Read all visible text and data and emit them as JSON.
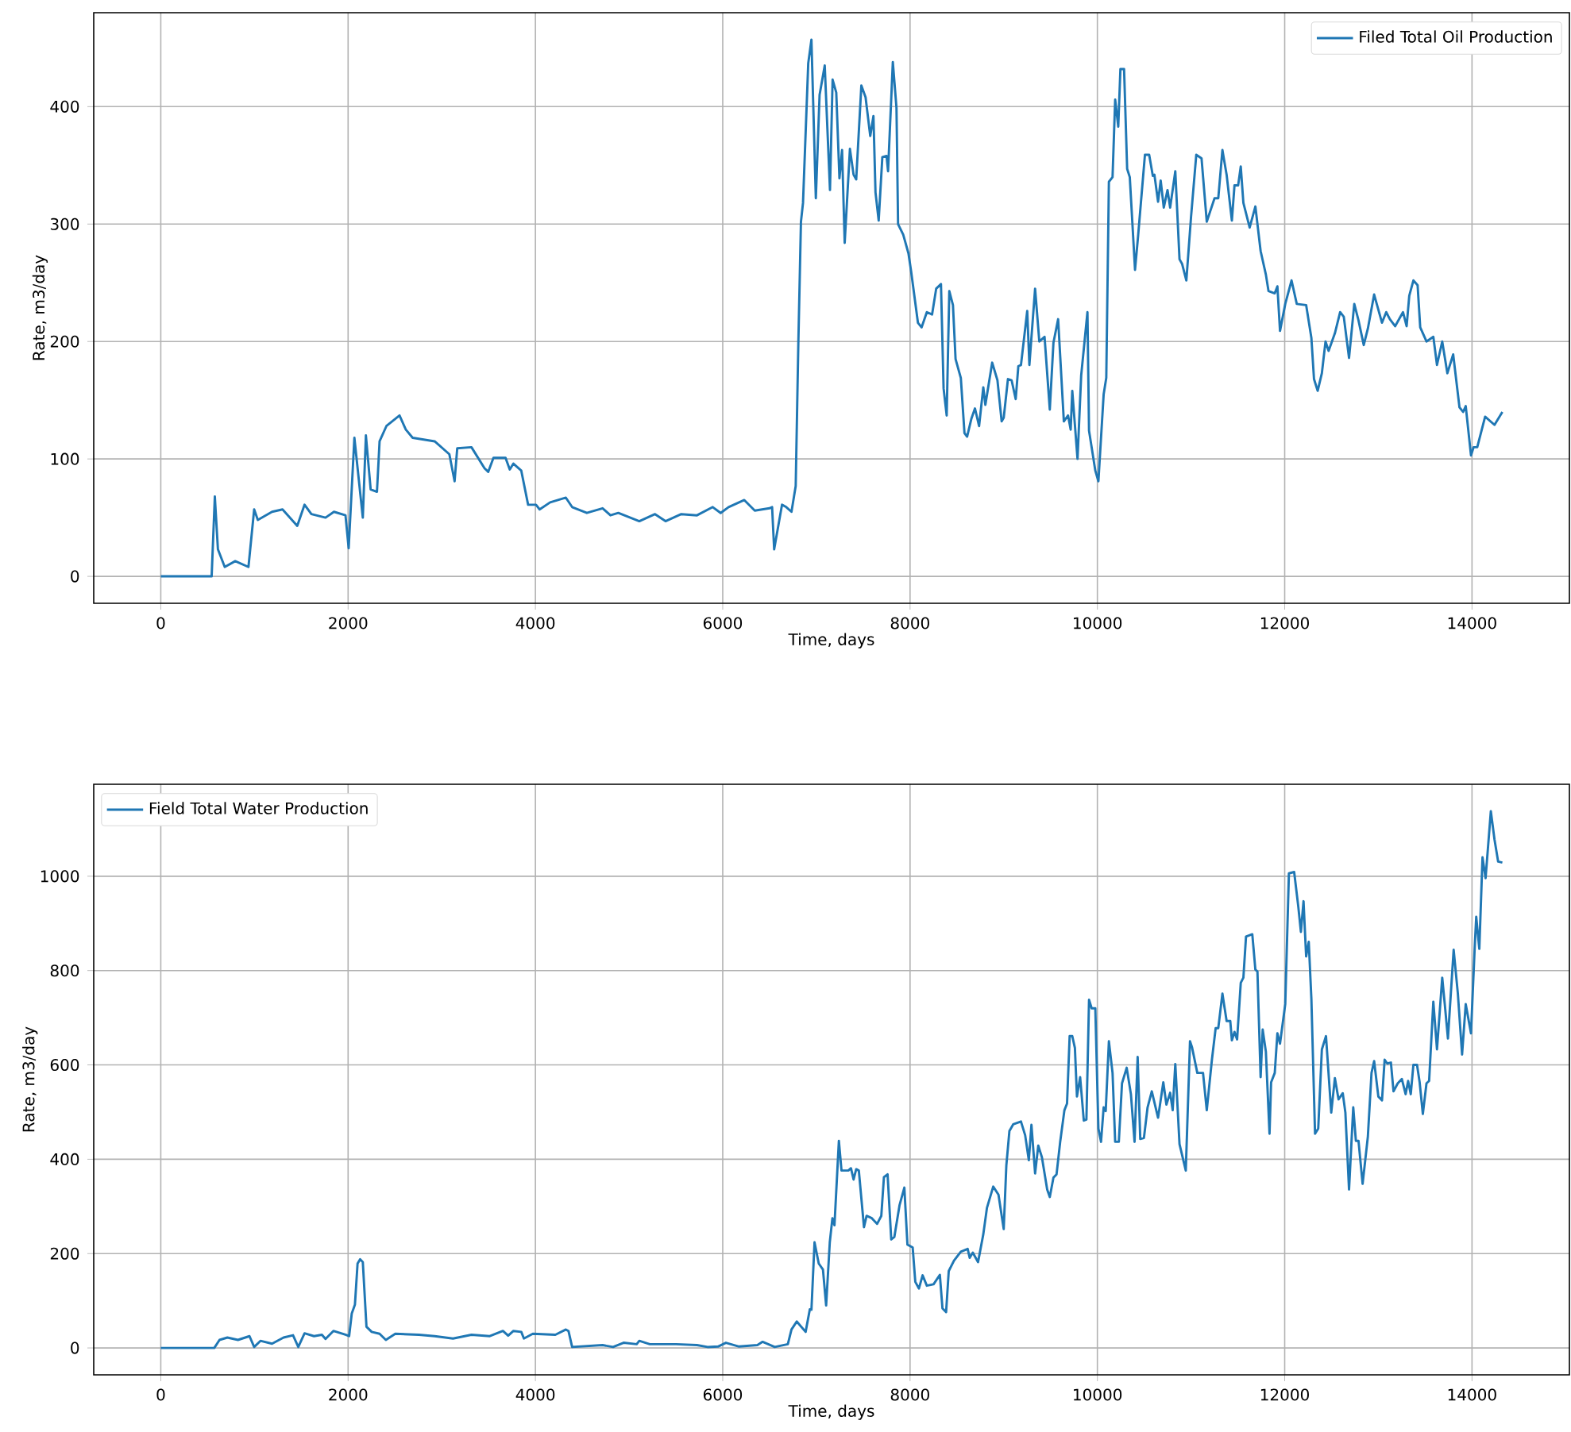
{
  "chart_data": [
    {
      "type": "line",
      "xlabel": "Time, days",
      "ylabel": "Rate, m3/day",
      "xlim": [
        -716,
        15040
      ],
      "ylim": [
        -22.9,
        480
      ],
      "xticks": [
        0,
        2000,
        4000,
        6000,
        8000,
        10000,
        12000,
        14000
      ],
      "yticks": [
        0,
        100,
        200,
        300,
        400
      ],
      "grid": true,
      "legend": "top right",
      "series": [
        {
          "name": "Filed Total Oil Production",
          "color": "#1f77b4",
          "x": [
            0,
            543,
            577,
            610,
            683,
            795,
            936,
            997,
            1036,
            1188,
            1300,
            1457,
            1535,
            1608,
            1759,
            1849,
            1972,
            2006,
            2067,
            2157,
            2190,
            2241,
            2308,
            2336,
            2409,
            2549,
            2616,
            2689,
            2924,
            3081,
            3137,
            3165,
            3317,
            3457,
            3496,
            3552,
            3681,
            3726,
            3765,
            3849,
            3922,
            4006,
            4045,
            4157,
            4325,
            4392,
            4549,
            4717,
            4801,
            4885,
            5109,
            5277,
            5389,
            5557,
            5725,
            5893,
            5978,
            6062,
            6230,
            6342,
            6499,
            6527,
            6549,
            6633,
            6678,
            6734,
            6779,
            6807,
            6835,
            6857,
            6913,
            6947,
            6994,
            7034,
            7089,
            7145,
            7173,
            7212,
            7246,
            7274,
            7302,
            7358,
            7397,
            7425,
            7480,
            7525,
            7575,
            7609,
            7631,
            7665,
            7704,
            7749,
            7765,
            7816,
            7855,
            7872,
            7927,
            7983,
            8011,
            8084,
            8123,
            8179,
            8235,
            8279,
            8330,
            8358,
            8391,
            8419,
            8458,
            8486,
            8542,
            8581,
            8609,
            8654,
            8693,
            8737,
            8782,
            8804,
            8877,
            8933,
            8978,
            9000,
            9045,
            9084,
            9128,
            9156,
            9184,
            9251,
            9274,
            9335,
            9380,
            9436,
            9492,
            9531,
            9581,
            9642,
            9687,
            9715,
            9732,
            9788,
            9827,
            9894,
            9911,
            9978,
            10011,
            10067,
            10095,
            10123,
            10162,
            10190,
            10223,
            10246,
            10285,
            10318,
            10346,
            10402,
            10436,
            10508,
            10553,
            10592,
            10609,
            10648,
            10676,
            10709,
            10749,
            10777,
            10832,
            10877,
            10905,
            10950,
            11000,
            11056,
            11112,
            11168,
            11251,
            11291,
            11335,
            11380,
            11436,
            11464,
            11503,
            11531,
            11559,
            11626,
            11687,
            11743,
            11799,
            11827,
            11894,
            11922,
            11950,
            12006,
            12073,
            12129,
            12229,
            12285,
            12313,
            12352,
            12397,
            12436,
            12469,
            12536,
            12592,
            12631,
            12687,
            12743,
            12788,
            12844,
            12888,
            12955,
            13039,
            13084,
            13123,
            13179,
            13263,
            13302,
            13330,
            13374,
            13419,
            13447,
            13514,
            13587,
            13626,
            13682,
            13737,
            13799,
            13866,
            13905,
            13933,
            13989,
            14017,
            14056,
            14140,
            14240,
            14324
          ],
          "values": [
            0,
            0,
            68,
            23,
            8,
            13,
            8,
            57,
            48,
            55,
            57,
            43,
            61,
            53,
            50,
            55,
            52,
            24,
            118,
            50,
            120,
            74,
            72,
            115,
            128,
            137,
            125,
            118,
            115,
            104,
            81,
            109,
            110,
            92,
            89,
            101,
            101,
            91,
            96,
            90,
            61,
            61,
            57,
            63,
            67,
            59,
            54,
            58,
            52,
            54,
            47,
            53,
            47,
            53,
            52,
            59,
            54,
            59,
            65,
            56,
            58,
            59,
            23,
            61,
            59,
            55,
            77,
            198,
            302,
            318,
            437,
            457,
            322,
            410,
            435,
            329,
            423,
            412,
            339,
            363,
            284,
            364,
            342,
            338,
            418,
            408,
            375,
            392,
            327,
            303,
            357,
            358,
            345,
            438,
            399,
            300,
            291,
            275,
            260,
            216,
            212,
            225,
            223,
            245,
            249,
            160,
            137,
            243,
            231,
            185,
            169,
            122,
            119,
            134,
            143,
            128,
            161,
            146,
            182,
            167,
            132,
            135,
            168,
            167,
            151,
            179,
            180,
            226,
            180,
            245,
            200,
            204,
            142,
            199,
            219,
            132,
            137,
            125,
            158,
            100,
            171,
            225,
            124,
            90,
            81,
            155,
            169,
            336,
            340,
            406,
            383,
            432,
            432,
            347,
            340,
            261,
            291,
            359,
            359,
            341,
            342,
            319,
            337,
            314,
            329,
            314,
            345,
            270,
            266,
            252,
            306,
            359,
            356,
            302,
            322,
            322,
            363,
            342,
            303,
            333,
            333,
            349,
            318,
            297,
            315,
            277,
            257,
            243,
            241,
            247,
            209,
            232,
            252,
            232,
            231,
            203,
            168,
            158,
            173,
            200,
            192,
            207,
            225,
            221,
            186,
            232,
            218,
            197,
            211,
            240,
            216,
            225,
            219,
            213,
            225,
            213,
            239,
            252,
            248,
            212,
            200,
            204,
            180,
            200,
            173,
            189,
            144,
            140,
            145,
            103,
            110,
            110,
            136,
            129,
            140
          ]
        }
      ]
    },
    {
      "type": "line",
      "xlabel": "Time, days",
      "ylabel": "Rate, m3/day",
      "xlim": [
        -716,
        15040
      ],
      "ylim": [
        -57,
        1195
      ],
      "xticks": [
        0,
        2000,
        4000,
        6000,
        8000,
        10000,
        12000,
        14000
      ],
      "yticks": [
        0,
        200,
        400,
        600,
        800,
        1000
      ],
      "grid": true,
      "legend": "top left",
      "series": [
        {
          "name": "Field Total Water Production",
          "color": "#1f77b4",
          "x": [
            0,
            571,
            627,
            711,
            824,
            947,
            997,
            1064,
            1188,
            1311,
            1412,
            1468,
            1535,
            1636,
            1720,
            1759,
            1843,
            1972,
            2011,
            2039,
            2073,
            2101,
            2129,
            2157,
            2196,
            2252,
            2336,
            2403,
            2504,
            2756,
            2924,
            3120,
            3317,
            3513,
            3653,
            3709,
            3765,
            3849,
            3877,
            3972,
            4213,
            4325,
            4353,
            4392,
            4717,
            4829,
            4941,
            5081,
            5109,
            5221,
            5501,
            5725,
            5838,
            5950,
            6034,
            6174,
            6370,
            6426,
            6555,
            6695,
            6734,
            6790,
            6885,
            6930,
            6947,
            6980,
            7025,
            7070,
            7104,
            7143,
            7171,
            7193,
            7240,
            7268,
            7341,
            7369,
            7397,
            7425,
            7453,
            7508,
            7536,
            7592,
            7648,
            7693,
            7721,
            7760,
            7799,
            7832,
            7888,
            7939,
            7972,
            8028,
            8056,
            8095,
            8134,
            8179,
            8251,
            8318,
            8346,
            8385,
            8413,
            8469,
            8542,
            8615,
            8637,
            8670,
            8726,
            8782,
            8821,
            8888,
            8944,
            9000,
            9028,
            9061,
            9101,
            9184,
            9229,
            9268,
            9296,
            9335,
            9369,
            9408,
            9464,
            9492,
            9531,
            9564,
            9603,
            9648,
            9676,
            9704,
            9732,
            9760,
            9782,
            9816,
            9855,
            9883,
            9911,
            9939,
            9978,
            10011,
            10039,
            10067,
            10089,
            10123,
            10162,
            10190,
            10229,
            10263,
            10313,
            10358,
            10397,
            10430,
            10458,
            10497,
            10536,
            10581,
            10648,
            10704,
            10737,
            10777,
            10804,
            10832,
            10877,
            10944,
            10989,
            11011,
            11067,
            11128,
            11168,
            11223,
            11263,
            11291,
            11335,
            11380,
            11419,
            11436,
            11464,
            11492,
            11531,
            11559,
            11587,
            11654,
            11687,
            11709,
            11743,
            11765,
            11799,
            11838,
            11855,
            11894,
            11922,
            11950,
            12006,
            12045,
            12101,
            12145,
            12173,
            12201,
            12229,
            12257,
            12285,
            12324,
            12358,
            12397,
            12441,
            12497,
            12536,
            12575,
            12620,
            12648,
            12687,
            12732,
            12760,
            12788,
            12832,
            12888,
            12927,
            12955,
            13000,
            13039,
            13067,
            13095,
            13134,
            13162,
            13207,
            13251,
            13291,
            13318,
            13346,
            13374,
            13413,
            13441,
            13475,
            13514,
            13542,
            13587,
            13626,
            13682,
            13709,
            13743,
            13804,
            13849,
            13894,
            13933,
            13989,
            14028,
            14045,
            14078,
            14112,
            14145,
            14201,
            14240,
            14279,
            14324
          ],
          "values": [
            0,
            0,
            17,
            22,
            17,
            25,
            2,
            15,
            9,
            22,
            27,
            2,
            31,
            25,
            28,
            19,
            36,
            28,
            25,
            73,
            92,
            179,
            188,
            182,
            45,
            34,
            30,
            17,
            30,
            28,
            25,
            20,
            28,
            25,
            36,
            26,
            36,
            34,
            20,
            30,
            28,
            39,
            36,
            2,
            6,
            2,
            11,
            8,
            15,
            8,
            8,
            6,
            2,
            3,
            11,
            3,
            6,
            13,
            2,
            8,
            39,
            56,
            34,
            82,
            81,
            224,
            179,
            166,
            90,
            224,
            275,
            260,
            439,
            376,
            376,
            381,
            357,
            379,
            376,
            256,
            280,
            275,
            263,
            280,
            362,
            368,
            230,
            235,
            303,
            340,
            219,
            213,
            140,
            126,
            154,
            132,
            135,
            155,
            84,
            76,
            163,
            185,
            204,
            210,
            191,
            202,
            182,
            241,
            297,
            342,
            325,
            252,
            387,
            460,
            474,
            480,
            451,
            398,
            473,
            370,
            429,
            404,
            336,
            320,
            361,
            368,
            437,
            504,
            518,
            661,
            661,
            636,
            533,
            574,
            482,
            484,
            738,
            720,
            720,
            465,
            437,
            510,
            502,
            650,
            583,
            437,
            437,
            561,
            594,
            538,
            437,
            617,
            443,
            445,
            510,
            544,
            488,
            563,
            516,
            541,
            504,
            602,
            432,
            376,
            650,
            637,
            583,
            583,
            504,
            611,
            678,
            678,
            751,
            693,
            693,
            652,
            670,
            654,
            774,
            785,
            872,
            877,
            802,
            798,
            574,
            675,
            628,
            454,
            563,
            583,
            667,
            645,
            729,
            1006,
            1009,
            936,
            882,
            947,
            830,
            861,
            740,
            454,
            465,
            633,
            661,
            499,
            572,
            527,
            540,
            499,
            336,
            510,
            439,
            439,
            348,
            448,
            583,
            608,
            533,
            525,
            611,
            603,
            605,
            544,
            561,
            570,
            538,
            566,
            538,
            600,
            600,
            563,
            496,
            561,
            566,
            734,
            633,
            785,
            729,
            656,
            844,
            751,
            622,
            729,
            667,
            846,
            914,
            846,
            1040,
            996,
            1138,
            1078,
            1031,
            1029
          ]
        }
      ]
    }
  ]
}
